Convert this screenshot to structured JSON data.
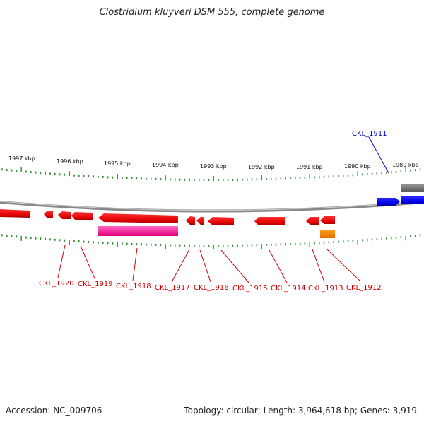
{
  "title": "Clostridium kluyveri DSM 555, complete genome",
  "footer": {
    "accession": "Accession: NC_009706",
    "summary": "Topology: circular; Length: 3,964,618 bp; Genes: 3,919"
  },
  "colors": {
    "backbone": "#888888",
    "tick": "#2e8b2e",
    "reverse_gene": "#ee0000",
    "forward_gene": "#0000ee",
    "rna_gene": "#ff3399",
    "other_feature": "#ff8800",
    "label_reverse": "#cc0000",
    "label_forward": "#0000cc"
  },
  "scale_labels": [
    "1997 kbp",
    "1996 kbp",
    "1995 kbp",
    "1994 kbp",
    "1993 kbp",
    "1992 kbp",
    "1991 kbp",
    "1990 kbp",
    "1989 kbp"
  ],
  "genes": [
    {
      "name": "CKL_1911",
      "strand": "+"
    },
    {
      "name": "CKL_1912",
      "strand": "-"
    },
    {
      "name": "CKL_1913",
      "strand": "-"
    },
    {
      "name": "CKL_1914",
      "strand": "-"
    },
    {
      "name": "CKL_1915",
      "strand": "-"
    },
    {
      "name": "CKL_1916",
      "strand": "-"
    },
    {
      "name": "CKL_1917",
      "strand": "-"
    },
    {
      "name": "CKL_1918",
      "strand": "-"
    },
    {
      "name": "CKL_1919",
      "strand": "-"
    },
    {
      "name": "CKL_1920",
      "strand": "-"
    }
  ]
}
